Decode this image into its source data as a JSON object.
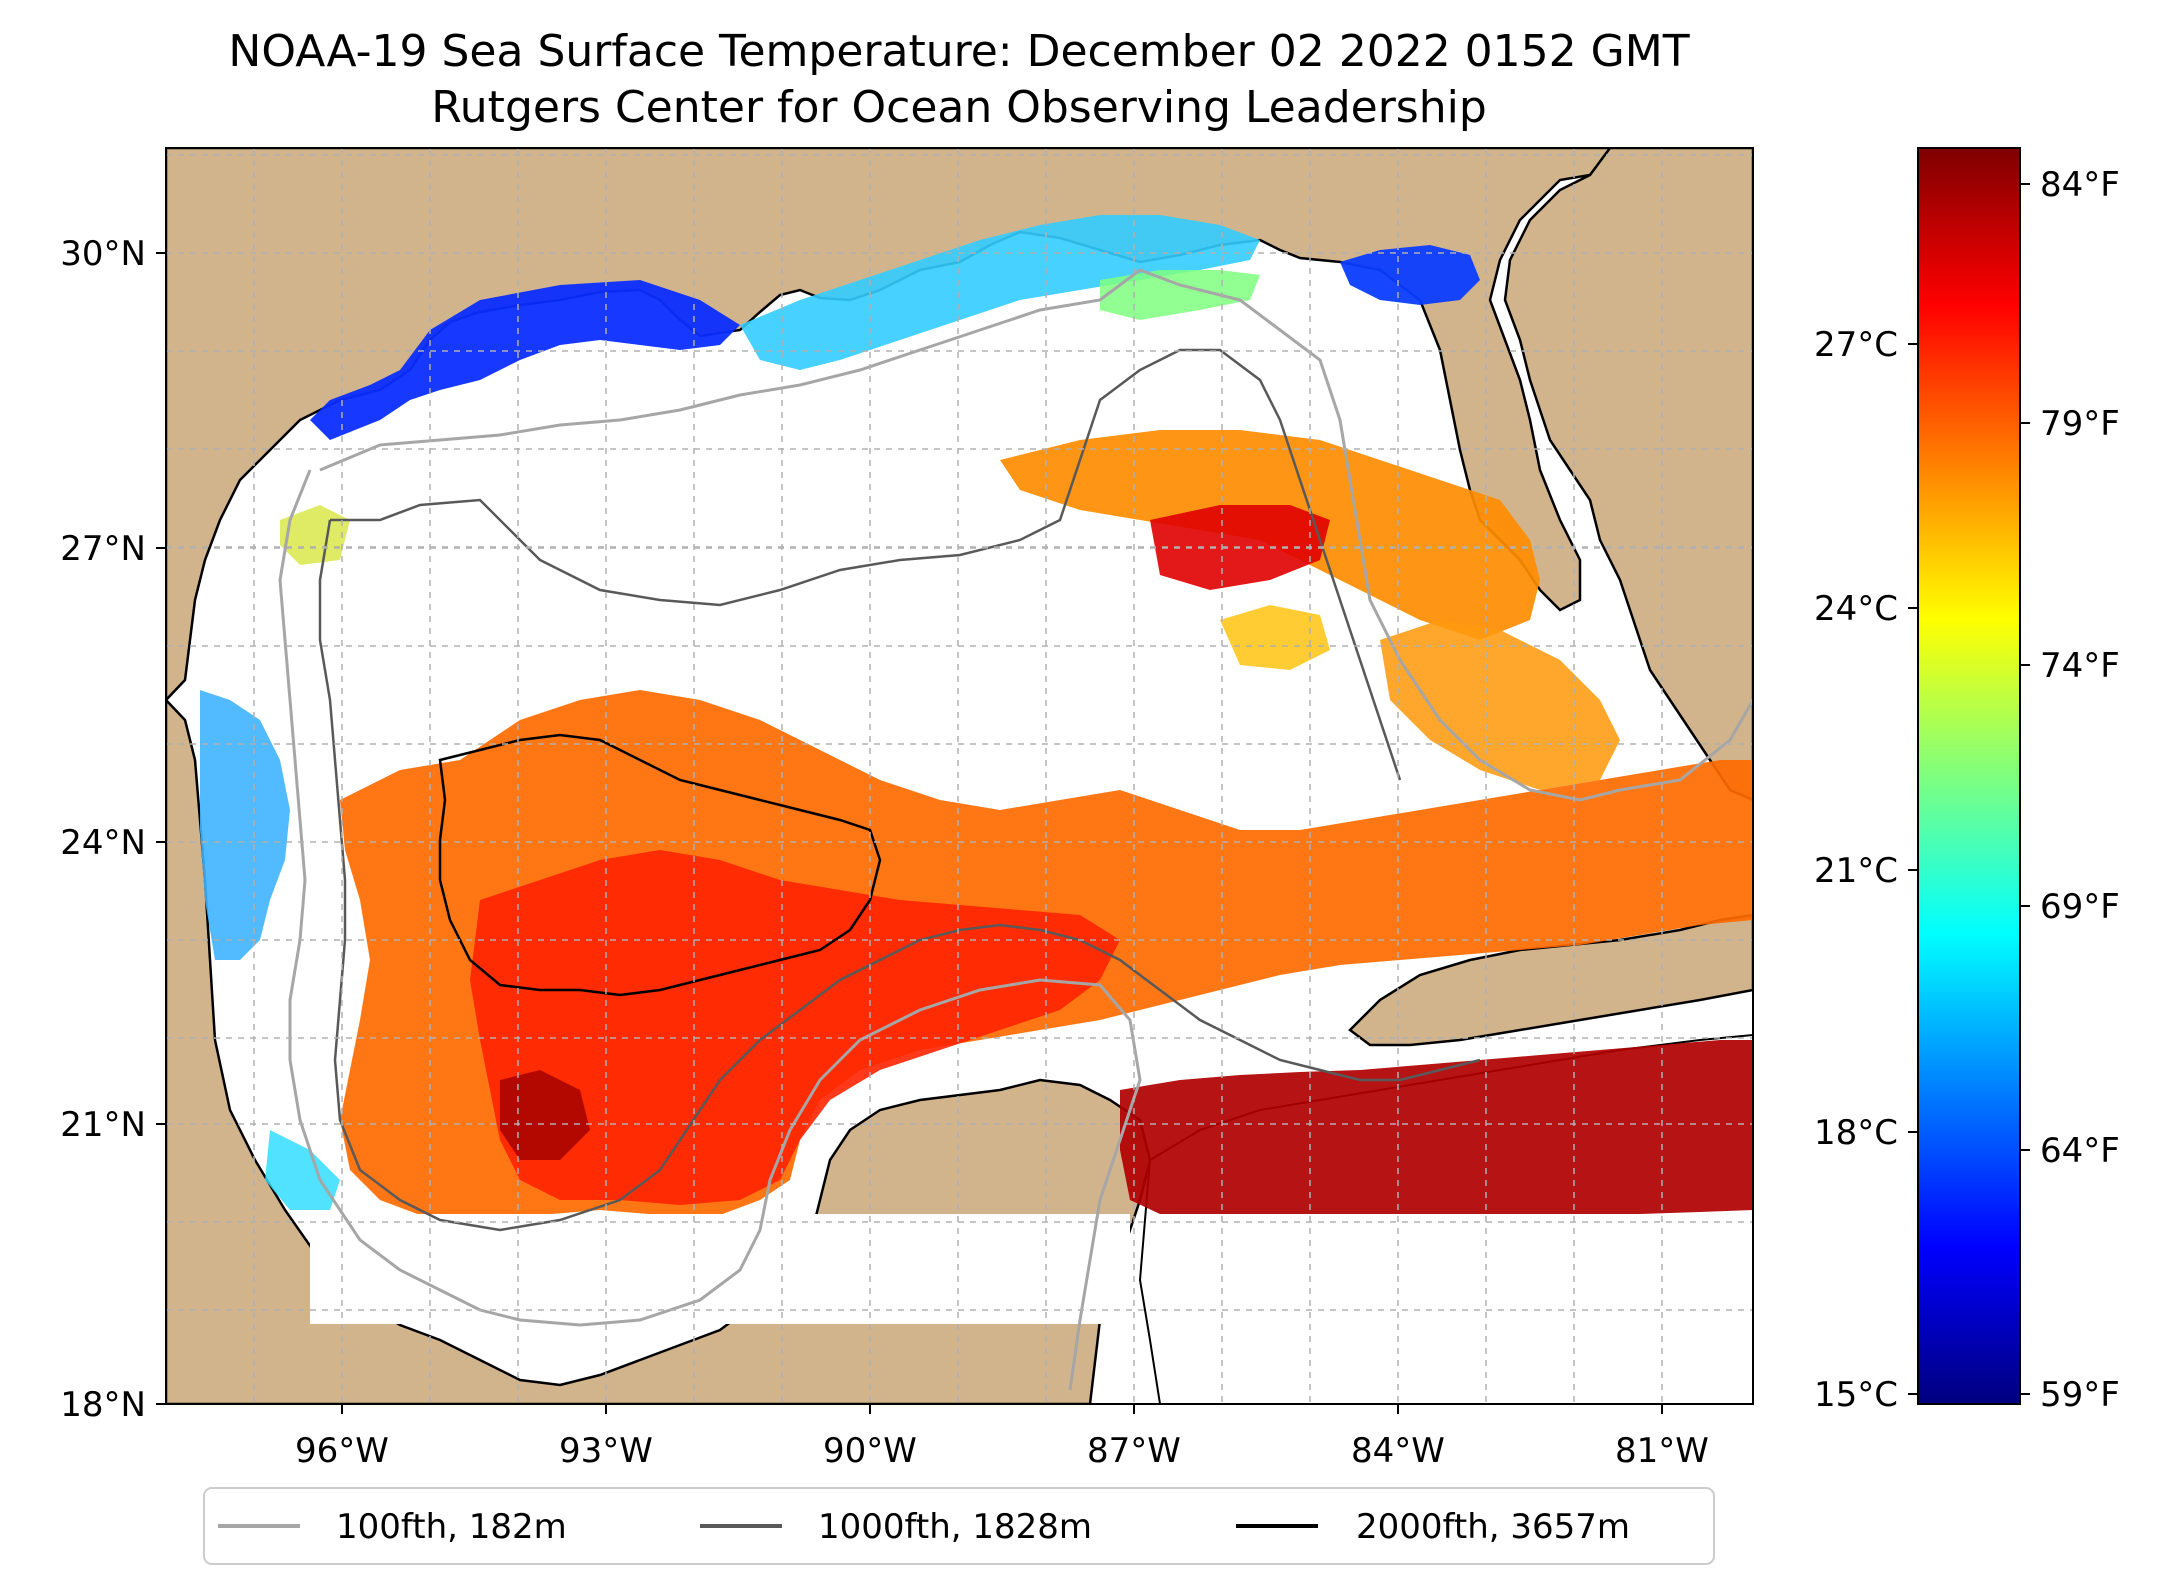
{
  "title": {
    "line1": "NOAA-19 Sea Surface Temperature: December 02 2022 0152 GMT",
    "line2": "Rutgers Center for Ocean Observing Leadership"
  },
  "map": {
    "lat_ticks": [
      "30°N",
      "27°N",
      "24°N",
      "21°N",
      "18°N"
    ],
    "lon_ticks": [
      "96°W",
      "93°W",
      "90°W",
      "87°W",
      "84°W",
      "81°W"
    ],
    "colors": {
      "land": "#d2b48c",
      "water": "#ffffff",
      "coast": "#000000",
      "grid": "#b0b0b0"
    }
  },
  "colorbar": {
    "celsius_ticks": [
      "27°C",
      "24°C",
      "21°C",
      "18°C",
      "15°C"
    ],
    "fahrenheit_ticks": [
      "84°F",
      "79°F",
      "74°F",
      "69°F",
      "64°F",
      "59°F"
    ],
    "colors": [
      "#00007f",
      "#0000ff",
      "#007fff",
      "#00ffff",
      "#7fff7f",
      "#ffff00",
      "#ff7f00",
      "#ff0000",
      "#7f0000"
    ]
  },
  "legend": {
    "items": [
      {
        "label": "100fth, 182m",
        "color": "#a6a6a6"
      },
      {
        "label": "1000fth, 1828m",
        "color": "#595959"
      },
      {
        "label": "2000fth, 3657m",
        "color": "#000000"
      }
    ]
  }
}
